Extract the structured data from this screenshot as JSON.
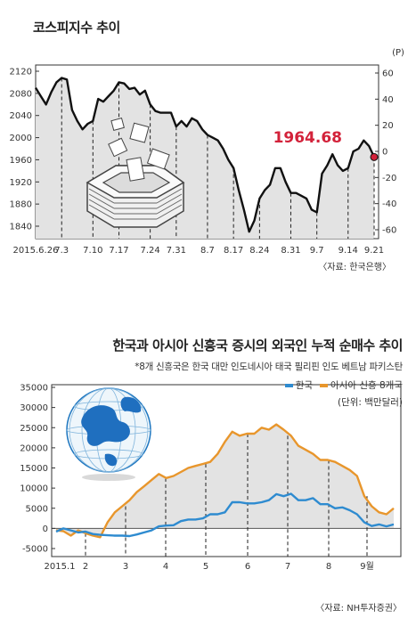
{
  "chart_data": [
    {
      "type": "area",
      "title": "코스피지수 추이",
      "source": "〈자료: 한국은행〉",
      "y_right_unit": "(P)",
      "annotation": "1964.68",
      "x_labels": [
        "2015.6.26",
        "7.3",
        "7.10",
        "7.17",
        "7.24",
        "7.31",
        "8.7",
        "8.17",
        "8.24",
        "8.31",
        "9.7",
        "9.14",
        "9.21"
      ],
      "y_left_ticks": [
        "2120",
        "2080",
        "2040",
        "2000",
        "1960",
        "1920",
        "1880",
        "1840"
      ],
      "y_right_ticks": [
        "60",
        "40",
        "20",
        "0",
        "-20",
        "-40",
        "-60"
      ],
      "ylim_left": [
        1830,
        2130
      ],
      "values": [
        2090,
        2075,
        2060,
        2082,
        2100,
        2108,
        2105,
        2050,
        2030,
        2015,
        2025,
        2030,
        2070,
        2065,
        2075,
        2085,
        2100,
        2098,
        2088,
        2090,
        2078,
        2085,
        2060,
        2048,
        2045,
        2045,
        2045,
        2020,
        2030,
        2020,
        2035,
        2030,
        2015,
        2005,
        2000,
        1995,
        1980,
        1960,
        1945,
        1905,
        1870,
        1830,
        1850,
        1890,
        1905,
        1915,
        1945,
        1945,
        1920,
        1900,
        1900,
        1895,
        1890,
        1870,
        1865,
        1935,
        1950,
        1970,
        1950,
        1940,
        1945,
        1975,
        1980,
        1995,
        1985,
        1965
      ]
    },
    {
      "type": "area",
      "title": "한국과 아시아 신흥국 증시의 외국인 누적 순매수 추이",
      "note": "*8개 신흥국은 한국 대만 인도네시아 태국 필리핀 인도 베트남 파키스탄",
      "unit": "(단위: 백만달러)",
      "source": "〈자료: NH투자증권〉",
      "x_labels": [
        "2015.1",
        "2",
        "3",
        "4",
        "5",
        "6",
        "7",
        "8",
        "9월"
      ],
      "y_ticks": [
        "35000",
        "30000",
        "25000",
        "20000",
        "15000",
        "10000",
        "5000",
        "0",
        "-5000"
      ],
      "ylim": [
        -5000,
        35000
      ],
      "series": [
        {
          "name": "한국",
          "color": "#2e8bd0",
          "values": [
            -800,
            0,
            -500,
            -1000,
            -800,
            -1400,
            -1600,
            -1700,
            -1800,
            -1800,
            -1900,
            -1500,
            -1000,
            -500,
            500,
            700,
            800,
            1800,
            2200,
            2200,
            2500,
            3500,
            3500,
            4000,
            6500,
            6500,
            6200,
            6200,
            6500,
            7000,
            8500,
            8000,
            8600,
            7000,
            7000,
            7500,
            6000,
            6000,
            5000,
            5200,
            4500,
            3500,
            1500,
            600,
            1000,
            500,
            1000
          ]
        },
        {
          "name": "아시아 신흥 8개국",
          "color": "#e8962c",
          "values": [
            -500,
            -700,
            -1800,
            -500,
            -1200,
            -1800,
            -2200,
            1500,
            4000,
            5500,
            7000,
            9000,
            10500,
            12000,
            13500,
            12500,
            13000,
            14000,
            15000,
            15500,
            16000,
            16500,
            18500,
            21500,
            24000,
            23000,
            23500,
            23500,
            25000,
            24500,
            25800,
            24500,
            23000,
            20500,
            19500,
            18500,
            17000,
            17000,
            16500,
            15500,
            14500,
            13000,
            8000,
            5500,
            4000,
            3500,
            5000
          ]
        }
      ]
    }
  ]
}
